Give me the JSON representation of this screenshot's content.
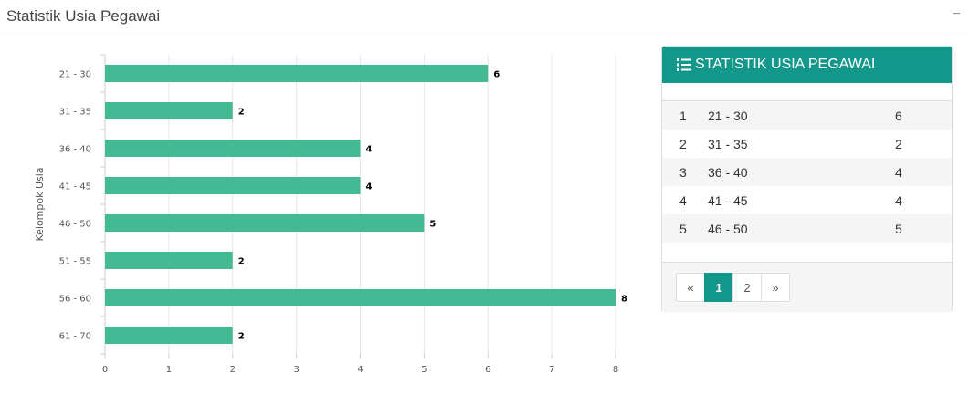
{
  "header": {
    "title": "Statistik Usia Pegawai",
    "collapse_icon": "minus-icon",
    "collapse_symbol": "−"
  },
  "chart_data": {
    "type": "bar",
    "orientation": "horizontal",
    "categories": [
      "21 - 30",
      "31 - 35",
      "36 - 40",
      "41 - 45",
      "46 - 50",
      "51 - 55",
      "56 - 60",
      "61 - 70"
    ],
    "values": [
      6,
      2,
      4,
      4,
      5,
      2,
      8,
      2
    ],
    "ylabel": "Kelompok Usia",
    "xlim": [
      0,
      8
    ],
    "x_ticks": [
      0,
      1,
      2,
      3,
      4,
      5,
      6,
      7,
      8
    ],
    "grid": true,
    "bar_color": "#43b994"
  },
  "panel": {
    "title": "STATISTIK USIA PEGAWAI",
    "icon": "list-icon",
    "rows": [
      {
        "no": "1",
        "range": "21 - 30",
        "count": "6"
      },
      {
        "no": "2",
        "range": "31 - 35",
        "count": "2"
      },
      {
        "no": "3",
        "range": "36 - 40",
        "count": "4"
      },
      {
        "no": "4",
        "range": "41 - 45",
        "count": "4"
      },
      {
        "no": "5",
        "range": "46 - 50",
        "count": "5"
      }
    ],
    "pagination": {
      "prev": "«",
      "pages": [
        "1",
        "2"
      ],
      "active": "1",
      "next": "»"
    }
  },
  "colors": {
    "accent": "#13978a",
    "bar": "#43b994"
  }
}
